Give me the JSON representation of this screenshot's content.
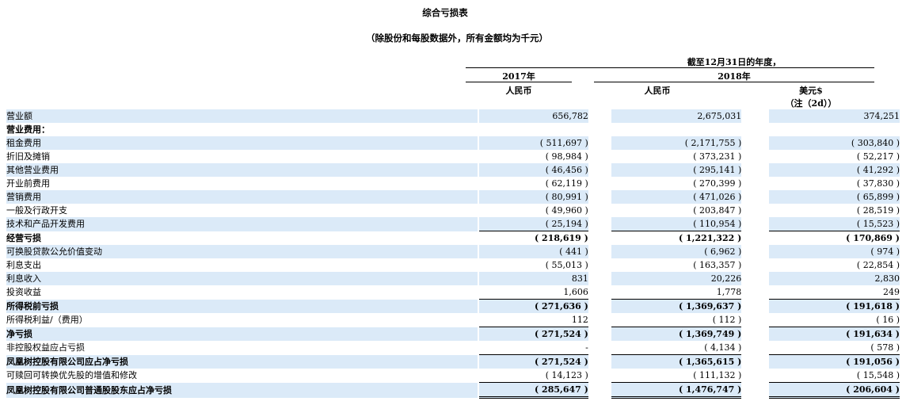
{
  "title": "综合亏损表",
  "subtitle": "（除股份和每股数据外，所有金额均为千元）",
  "header": {
    "period": "截至12月31日的年度，",
    "year_2017": "2017年",
    "year_2018": "2018年",
    "col1_currency": "人民币",
    "col2_currency": "人民币",
    "col3_currency": "美元$",
    "col3_note": "（注（2d））"
  },
  "rows": [
    {
      "label": "营业额",
      "v2017": "656,782",
      "v2018": "2,675,031",
      "usd": "374,251"
    },
    {
      "label": "营业费用：",
      "v2017": "",
      "v2018": "",
      "usd": ""
    },
    {
      "label": "租金费用",
      "v2017": "( 511,697 )",
      "v2018": "( 2,171,755 )",
      "usd": "( 303,840 )"
    },
    {
      "label": "折旧及摊销",
      "v2017": "( 98,984 )",
      "v2018": "( 373,231 )",
      "usd": "( 52,217 )"
    },
    {
      "label": "其他营业费用",
      "v2017": "( 46,456 )",
      "v2018": "( 295,141 )",
      "usd": "( 41,292 )"
    },
    {
      "label": "开业前费用",
      "v2017": "( 62,119 )",
      "v2018": "( 270,399 )",
      "usd": "( 37,830 )"
    },
    {
      "label": "营销费用",
      "v2017": "( 80,991 )",
      "v2018": "( 471,026 )",
      "usd": "( 65,899 )"
    },
    {
      "label": "一般及行政开支",
      "v2017": "( 49,960 )",
      "v2018": "( 203,847 )",
      "usd": "( 28,519 )"
    },
    {
      "label": "技术和产品开发费用",
      "v2017": "( 25,194 )",
      "v2018": "( 110,954 )",
      "usd": "( 15,523 )"
    },
    {
      "label": "经营亏损",
      "v2017": "( 218,619 )",
      "v2018": "( 1,221,322 )",
      "usd": "( 170,869 )"
    },
    {
      "label": "可换股贷款公允价值变动",
      "v2017": "( 441 )",
      "v2018": "( 6,962 )",
      "usd": "( 974 )"
    },
    {
      "label": "利息支出",
      "v2017": "( 55,013 )",
      "v2018": "( 163,357 )",
      "usd": "( 22,854 )"
    },
    {
      "label": "利息收入",
      "v2017": "831",
      "v2018": "20,226",
      "usd": "2,830"
    },
    {
      "label": "投资收益",
      "v2017": "1,606",
      "v2018": "1,778",
      "usd": "249"
    },
    {
      "label": "所得税前亏损",
      "v2017": "( 271,636 )",
      "v2018": "( 1,369,637 )",
      "usd": "( 191,618 )"
    },
    {
      "label": "所得税利益/（费用）",
      "v2017": "112",
      "v2018": "( 112 )",
      "usd": "( 16 )"
    },
    {
      "label": "净亏损",
      "v2017": "( 271,524 )",
      "v2018": "( 1,369,749 )",
      "usd": "( 191,634 )"
    },
    {
      "label": "非控股权益应占亏损",
      "v2017": "-",
      "v2018": "( 4,134 )",
      "usd": "( 578 )"
    },
    {
      "label": "凤凰树控股有限公司应占净亏损",
      "v2017": "( 271,524 )",
      "v2018": "( 1,365,615 )",
      "usd": "( 191,056 )"
    },
    {
      "label": "可赎回可转换优先股的增值和修改",
      "v2017": "( 14,123 )",
      "v2018": "( 111,132 )",
      "usd": "( 15,548 )"
    },
    {
      "label": "凤凰树控股有限公司普通股股东应占净亏损",
      "v2017": "( 285,647 )",
      "v2018": "( 1,476,747 )",
      "usd": "( 206,604 )"
    }
  ]
}
